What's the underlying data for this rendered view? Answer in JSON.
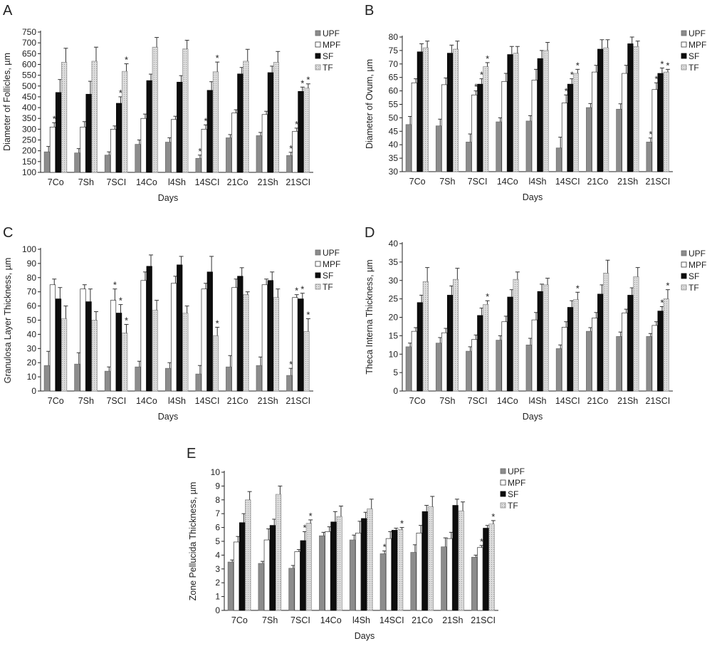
{
  "series_names": [
    "UPF",
    "MPF",
    "SF",
    "TF"
  ],
  "series_colors": {
    "UPF": "#8c8c8c",
    "MPF": "#ffffff",
    "SF": "#0d0d0d",
    "TF": "#d9d9d9"
  },
  "chart_data": [
    {
      "panel": "A",
      "type": "bar",
      "xlabel": "Days",
      "ylabel": "Diameter of Follicles, µm",
      "ylim": [
        100,
        750
      ],
      "yticks": [
        100,
        150,
        200,
        250,
        300,
        350,
        400,
        450,
        500,
        550,
        600,
        650,
        700,
        750
      ],
      "categories": [
        "7Co",
        "7Sh",
        "7SCI",
        "14Co",
        "l4Sh",
        "14SCI",
        "21Co",
        "21Sh",
        "21SCI"
      ],
      "series": [
        {
          "name": "UPF",
          "values": [
            195,
            190,
            180,
            230,
            240,
            165,
            260,
            270,
            178
          ],
          "errors": [
            25,
            20,
            15,
            20,
            20,
            15,
            15,
            15,
            15
          ],
          "sig": [
            false,
            false,
            false,
            false,
            false,
            true,
            false,
            false,
            true
          ]
        },
        {
          "name": "MPF",
          "values": [
            310,
            310,
            300,
            350,
            345,
            300,
            375,
            368,
            290
          ],
          "errors": [
            20,
            25,
            15,
            20,
            15,
            20,
            15,
            15,
            15
          ],
          "sig": [
            true,
            false,
            false,
            false,
            false,
            true,
            false,
            false,
            true
          ]
        },
        {
          "name": "SF",
          "values": [
            470,
            462,
            420,
            525,
            518,
            480,
            556,
            562,
            475
          ],
          "errors": [
            60,
            60,
            30,
            30,
            30,
            40,
            30,
            30,
            20
          ],
          "sig": [
            false,
            false,
            true,
            false,
            false,
            false,
            false,
            false,
            true
          ]
        },
        {
          "name": "TF",
          "values": [
            610,
            615,
            568,
            680,
            672,
            566,
            615,
            610,
            490
          ],
          "errors": [
            65,
            65,
            35,
            45,
            40,
            45,
            55,
            50,
            20
          ],
          "sig": [
            false,
            false,
            true,
            false,
            false,
            true,
            false,
            false,
            true
          ]
        }
      ]
    },
    {
      "panel": "B",
      "type": "bar",
      "xlabel": "Days",
      "ylabel": "Diameter of Ovum, µm",
      "ylim": [
        30,
        80
      ],
      "yticks": [
        30,
        35,
        40,
        45,
        50,
        55,
        60,
        65,
        70,
        75,
        80
      ],
      "categories": [
        "7Co",
        "7Sh",
        "7SCI",
        "14Co",
        "l4Sh",
        "14SCI",
        "21Co",
        "21Sh",
        "21SCI"
      ],
      "series": [
        {
          "name": "UPF",
          "values": [
            47.5,
            47,
            41,
            48.5,
            48.8,
            38.8,
            53.8,
            53.2,
            41
          ],
          "errors": [
            3,
            2.5,
            3,
            1.5,
            2,
            4,
            1.5,
            2,
            1.5
          ],
          "sig": [
            false,
            false,
            false,
            false,
            false,
            false,
            false,
            false,
            true
          ]
        },
        {
          "name": "MPF",
          "values": [
            63,
            62.3,
            58.5,
            63.5,
            64,
            55.5,
            67,
            66.5,
            60.5
          ],
          "errors": [
            1.5,
            2.5,
            1.5,
            3,
            4,
            3,
            2.5,
            3,
            2.5
          ],
          "sig": [
            false,
            false,
            true,
            false,
            false,
            true,
            false,
            false,
            true
          ]
        },
        {
          "name": "SF",
          "values": [
            74.5,
            74,
            62.5,
            73.5,
            72,
            62.5,
            75.5,
            77.5,
            66.5
          ],
          "errors": [
            3,
            3,
            2,
            3,
            3,
            2,
            3.5,
            2.5,
            2
          ],
          "sig": [
            false,
            false,
            true,
            false,
            false,
            true,
            false,
            false,
            true
          ]
        },
        {
          "name": "TF",
          "values": [
            76,
            75.5,
            69,
            74,
            75,
            66.5,
            76,
            76.5,
            67
          ],
          "errors": [
            2.5,
            3,
            1.5,
            2.5,
            3,
            1.5,
            3,
            2,
            1
          ],
          "sig": [
            false,
            false,
            true,
            false,
            false,
            true,
            false,
            false,
            true
          ]
        }
      ]
    },
    {
      "panel": "C",
      "type": "bar",
      "xlabel": "Days",
      "ylabel": "Granulosa Layer Thickness, µm",
      "ylim": [
        0,
        100
      ],
      "yticks": [
        0,
        10,
        20,
        30,
        40,
        50,
        60,
        70,
        80,
        90,
        100
      ],
      "categories": [
        "7Co",
        "7Sh",
        "7SCI",
        "14Co",
        "l4Sh",
        "14SCI",
        "21Co",
        "21Sh",
        "21SCI"
      ],
      "series": [
        {
          "name": "UPF",
          "values": [
            18,
            19,
            14,
            17,
            16,
            12,
            17,
            18,
            11
          ],
          "errors": [
            10,
            8,
            3,
            4,
            4,
            6,
            8,
            6,
            5
          ],
          "sig": [
            false,
            false,
            false,
            false,
            false,
            false,
            false,
            false,
            true
          ]
        },
        {
          "name": "MPF",
          "values": [
            75,
            72,
            64,
            78,
            76,
            72,
            73,
            75,
            66
          ],
          "errors": [
            4,
            3,
            8,
            6,
            5,
            4,
            6,
            4,
            2
          ],
          "sig": [
            false,
            false,
            true,
            false,
            false,
            false,
            false,
            false,
            true
          ]
        },
        {
          "name": "SF",
          "values": [
            65,
            63,
            55,
            88,
            89,
            84,
            81,
            78,
            65
          ],
          "errors": [
            8,
            9,
            6,
            8,
            6,
            11,
            6,
            6,
            4
          ],
          "sig": [
            false,
            false,
            true,
            false,
            false,
            false,
            false,
            false,
            true
          ]
        },
        {
          "name": "TF",
          "values": [
            51,
            50,
            41,
            57,
            55,
            39,
            68,
            66,
            42
          ],
          "errors": [
            9,
            6,
            6,
            7,
            5,
            6,
            2,
            6,
            9
          ],
          "sig": [
            false,
            false,
            true,
            false,
            false,
            true,
            false,
            false,
            true
          ]
        }
      ]
    },
    {
      "panel": "D",
      "type": "bar",
      "xlabel": "Days",
      "ylabel": "Theca Interna Thickness, µm",
      "ylim": [
        0,
        40
      ],
      "yticks": [
        0,
        5,
        10,
        15,
        20,
        25,
        30,
        35,
        40
      ],
      "categories": [
        "7Co",
        "7Sh",
        "7SCI",
        "14Co",
        "l4Sh",
        "14SCI",
        "21Co",
        "21Sh",
        "21SCI"
      ],
      "series": [
        {
          "name": "UPF",
          "values": [
            12,
            13,
            10.8,
            13.8,
            12.5,
            11.5,
            16.2,
            14.8,
            14.8
          ],
          "errors": [
            1,
            1.5,
            1.2,
            1.2,
            1.8,
            1,
            1,
            1.2,
            0.8
          ],
          "sig": [
            false,
            false,
            false,
            false,
            false,
            false,
            false,
            false,
            false
          ]
        },
        {
          "name": "MPF",
          "values": [
            16.2,
            15.8,
            14,
            18.8,
            19.3,
            17.3,
            19.8,
            21.2,
            17.8
          ],
          "errors": [
            1,
            1.2,
            1.2,
            1.5,
            2,
            1.5,
            1.5,
            1,
            1
          ],
          "sig": [
            false,
            false,
            false,
            false,
            false,
            false,
            false,
            false,
            false
          ]
        },
        {
          "name": "SF",
          "values": [
            24,
            26,
            20.5,
            25.5,
            27,
            22.7,
            26.3,
            26,
            21.7
          ],
          "errors": [
            2,
            2.5,
            2,
            2,
            2,
            1.8,
            2.5,
            2,
            1.2
          ],
          "sig": [
            false,
            false,
            false,
            false,
            false,
            false,
            false,
            false,
            true
          ]
        },
        {
          "name": "TF",
          "values": [
            29.7,
            30.3,
            23.5,
            30.3,
            28.8,
            24.8,
            32,
            31,
            25
          ],
          "errors": [
            3.8,
            3,
            1,
            2,
            1.8,
            2,
            3.5,
            2.5,
            2.5
          ],
          "sig": [
            false,
            false,
            true,
            false,
            false,
            true,
            false,
            false,
            true
          ]
        }
      ]
    },
    {
      "panel": "E",
      "type": "bar",
      "xlabel": "Days",
      "ylabel": "Zone Pellucida Thickness, µm",
      "ylim": [
        0,
        10
      ],
      "yticks": [
        0,
        1,
        2,
        3,
        4,
        5,
        6,
        7,
        8,
        9,
        10
      ],
      "categories": [
        "7Co",
        "7Sh",
        "7SCI",
        "14Co",
        "l4Sh",
        "14SCI",
        "21Co",
        "21Sh",
        "21SCI"
      ],
      "series": [
        {
          "name": "UPF",
          "values": [
            3.5,
            3.4,
            3.05,
            5.4,
            5.1,
            4.1,
            4.2,
            4.6,
            3.85
          ],
          "errors": [
            0.15,
            0.15,
            0.2,
            0.25,
            0.35,
            0.2,
            0.55,
            0.65,
            0.15
          ],
          "sig": [
            false,
            false,
            false,
            false,
            false,
            true,
            false,
            false,
            false
          ]
        },
        {
          "name": "MPF",
          "values": [
            4.95,
            5.1,
            4.25,
            5.7,
            5.6,
            5.2,
            5.6,
            5.2,
            4.55
          ],
          "errors": [
            0.4,
            0.8,
            0.15,
            0.35,
            0.85,
            0.5,
            0.55,
            0.45,
            0.15
          ],
          "sig": [
            false,
            false,
            false,
            false,
            false,
            false,
            false,
            false,
            true
          ]
        },
        {
          "name": "SF",
          "values": [
            6.35,
            6.15,
            5.05,
            6.4,
            6.65,
            5.8,
            7.15,
            7.6,
            5.95
          ],
          "errors": [
            0.65,
            0.45,
            0.65,
            0.75,
            0.45,
            0.15,
            0.45,
            0.45,
            0.2
          ],
          "sig": [
            false,
            false,
            true,
            false,
            false,
            false,
            false,
            false,
            false
          ]
        },
        {
          "name": "TF",
          "values": [
            8,
            8.4,
            6.3,
            6.8,
            7.35,
            5.85,
            7.5,
            7.2,
            6.25
          ],
          "errors": [
            0.6,
            0.6,
            0.25,
            0.75,
            0.7,
            0.15,
            0.75,
            0.65,
            0.25
          ],
          "sig": [
            false,
            false,
            true,
            false,
            false,
            true,
            false,
            false,
            true
          ]
        }
      ]
    }
  ]
}
